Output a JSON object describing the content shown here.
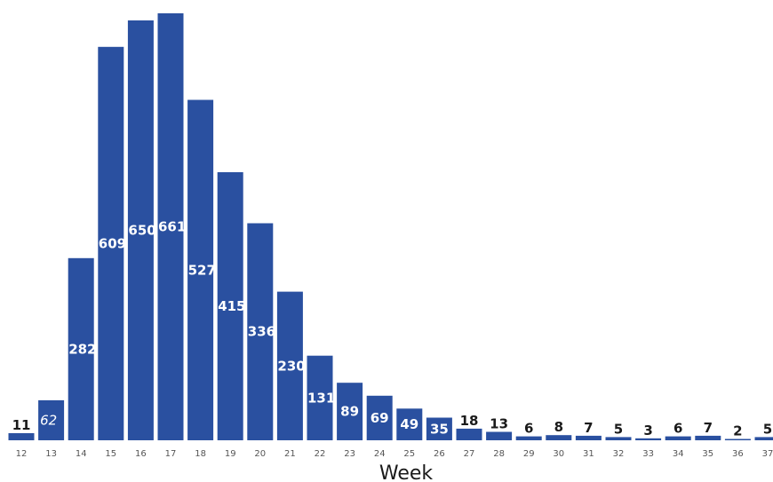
{
  "chart_data": {
    "type": "bar",
    "title": "",
    "xlabel": "Week",
    "ylabel": "",
    "categories": [
      "12",
      "13",
      "14",
      "15",
      "16",
      "17",
      "18",
      "19",
      "20",
      "21",
      "22",
      "23",
      "24",
      "25",
      "26",
      "27",
      "28",
      "29",
      "30",
      "31",
      "32",
      "33",
      "34",
      "35",
      "36",
      "37"
    ],
    "values": [
      11,
      62,
      282,
      609,
      650,
      661,
      527,
      415,
      336,
      230,
      131,
      89,
      69,
      49,
      35,
      18,
      13,
      6,
      8,
      7,
      5,
      3,
      6,
      7,
      2,
      5
    ],
    "ylim": [
      0,
      661
    ],
    "grid": false,
    "legend": "none",
    "colors": {
      "bar": "#2a50a0"
    }
  }
}
